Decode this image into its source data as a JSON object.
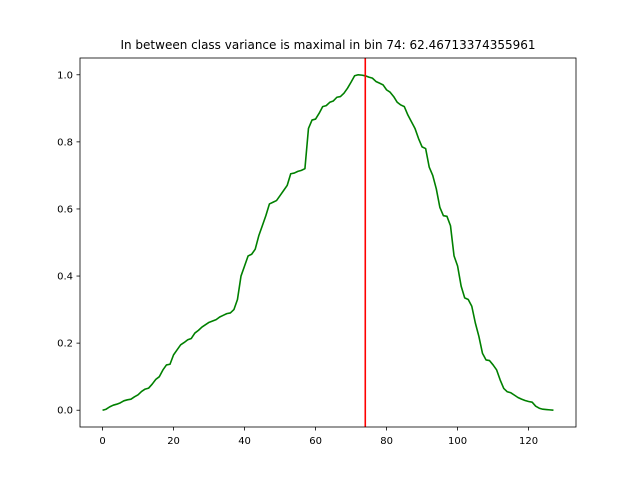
{
  "chart_data": {
    "type": "line",
    "title": "In between class variance is maximal in bin 74: 62.46713374355961",
    "xlabel": "",
    "ylabel": "",
    "xlim": [
      -6.35,
      133.35
    ],
    "ylim": [
      -0.05,
      1.05
    ],
    "xticks": [
      0,
      20,
      40,
      60,
      80,
      100,
      120
    ],
    "yticks": [
      0.0,
      0.2,
      0.4,
      0.6,
      0.8,
      1.0
    ],
    "xtick_labels": [
      "0",
      "20",
      "40",
      "60",
      "80",
      "100",
      "120"
    ],
    "ytick_labels": [
      "0.0",
      "0.2",
      "0.4",
      "0.6",
      "0.8",
      "1.0"
    ],
    "grid": false,
    "series": [
      {
        "color": "#008000",
        "x": [
          0,
          1,
          2,
          3,
          4,
          5,
          6,
          7,
          8,
          9,
          10,
          11,
          12,
          13,
          14,
          15,
          16,
          17,
          18,
          19,
          20,
          21,
          22,
          23,
          24,
          25,
          26,
          27,
          28,
          29,
          30,
          31,
          32,
          33,
          34,
          35,
          36,
          37,
          38,
          39,
          40,
          41,
          42,
          43,
          44,
          45,
          46,
          47,
          48,
          49,
          50,
          51,
          52,
          53,
          54,
          55,
          56,
          57,
          58,
          59,
          60,
          61,
          62,
          63,
          64,
          65,
          66,
          67,
          68,
          69,
          70,
          71,
          72,
          73,
          74,
          75,
          76,
          77,
          78,
          79,
          80,
          81,
          82,
          83,
          84,
          85,
          86,
          87,
          88,
          89,
          90,
          91,
          92,
          93,
          94,
          95,
          96,
          97,
          98,
          99,
          100,
          101,
          102,
          103,
          104,
          105,
          106,
          107,
          108,
          109,
          110,
          111,
          112,
          113,
          114,
          115,
          116,
          117,
          118,
          119,
          120,
          121,
          122,
          123,
          124,
          125,
          126,
          127
        ],
        "y": [
          0.0,
          0.003,
          0.01,
          0.015,
          0.018,
          0.022,
          0.028,
          0.031,
          0.033,
          0.04,
          0.046,
          0.056,
          0.063,
          0.066,
          0.078,
          0.092,
          0.1,
          0.12,
          0.135,
          0.137,
          0.165,
          0.18,
          0.195,
          0.202,
          0.21,
          0.214,
          0.23,
          0.238,
          0.248,
          0.255,
          0.262,
          0.266,
          0.27,
          0.278,
          0.283,
          0.288,
          0.29,
          0.3,
          0.33,
          0.4,
          0.43,
          0.46,
          0.465,
          0.48,
          0.52,
          0.55,
          0.58,
          0.615,
          0.62,
          0.625,
          0.64,
          0.655,
          0.67,
          0.705,
          0.707,
          0.712,
          0.715,
          0.72,
          0.84,
          0.865,
          0.868,
          0.885,
          0.905,
          0.908,
          0.918,
          0.922,
          0.933,
          0.935,
          0.945,
          0.96,
          0.978,
          0.997,
          1.0,
          0.999,
          0.997,
          0.993,
          0.99,
          0.98,
          0.975,
          0.97,
          0.955,
          0.948,
          0.935,
          0.918,
          0.91,
          0.905,
          0.88,
          0.86,
          0.84,
          0.81,
          0.785,
          0.78,
          0.725,
          0.7,
          0.66,
          0.605,
          0.58,
          0.578,
          0.55,
          0.46,
          0.43,
          0.37,
          0.335,
          0.33,
          0.31,
          0.26,
          0.22,
          0.17,
          0.15,
          0.148,
          0.135,
          0.12,
          0.09,
          0.065,
          0.055,
          0.052,
          0.045,
          0.038,
          0.033,
          0.029,
          0.026,
          0.024,
          0.012,
          0.006,
          0.003,
          0.002,
          0.001,
          0.0
        ]
      }
    ],
    "vline": {
      "x": 74,
      "color": "#ff0000"
    }
  }
}
